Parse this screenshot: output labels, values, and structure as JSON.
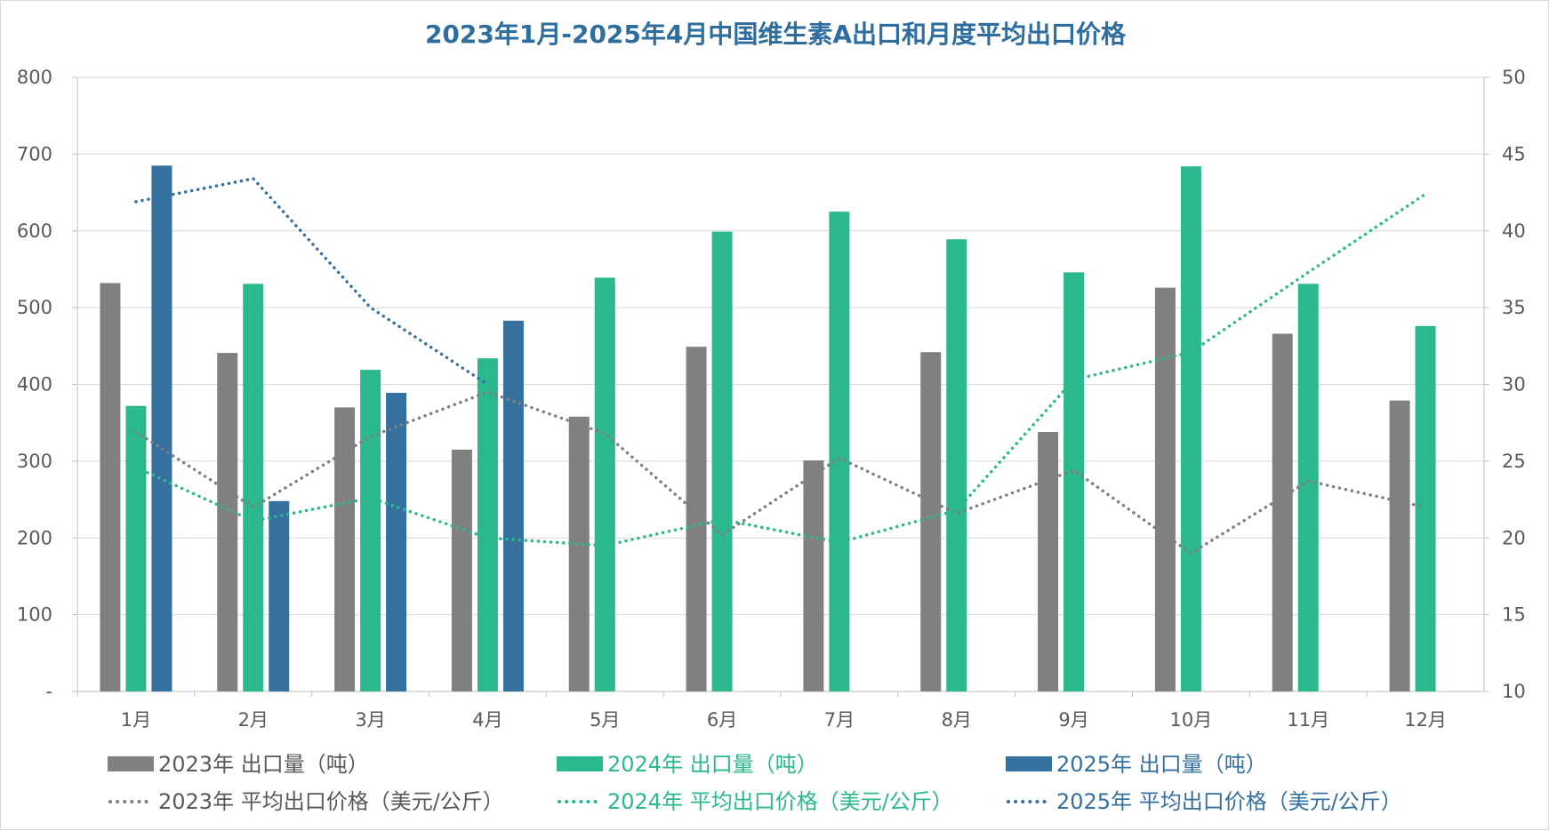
{
  "chart_data": {
    "type": "bar",
    "title": "2023年1月-2025年4月中国维生素A出口和月度平均出口价格",
    "categories": [
      "1月",
      "2月",
      "3月",
      "4月",
      "5月",
      "6月",
      "7月",
      "8月",
      "9月",
      "10月",
      "11月",
      "12月"
    ],
    "y_left": {
      "ylim": [
        0,
        800
      ],
      "ticks": [
        "-",
        "100",
        "200",
        "300",
        "400",
        "500",
        "600",
        "700",
        "800"
      ]
    },
    "y_right": {
      "ylim": [
        10,
        50
      ],
      "ticks": [
        "10",
        "15",
        "20",
        "25",
        "30",
        "35",
        "40",
        "45",
        "50"
      ]
    },
    "grid": true,
    "legend_position": "bottom",
    "bar_series": [
      {
        "name": "2023年 出口量（吨）",
        "color": "#808080",
        "values": [
          532,
          441,
          370,
          315,
          358,
          449,
          301,
          442,
          338,
          526,
          466,
          379
        ]
      },
      {
        "name": "2024年 出口量（吨）",
        "color": "#2BB88F",
        "values": [
          372,
          531,
          419,
          434,
          539,
          599,
          625,
          589,
          546,
          684,
          531,
          476
        ]
      },
      {
        "name": "2025年 出口量（吨）",
        "color": "#35709E",
        "values": [
          685,
          248,
          389,
          483,
          null,
          null,
          null,
          null,
          null,
          null,
          null,
          null
        ]
      }
    ],
    "line_series": [
      {
        "name": "2023年 平均出口价格（美元/公斤）",
        "color": "#7F7F7F",
        "values": [
          26.9,
          22.0,
          26.6,
          29.5,
          26.8,
          20.2,
          25.2,
          21.6,
          24.4,
          19.0,
          23.7,
          22.0
        ]
      },
      {
        "name": "2024年 平均出口价格（美元/公斤）",
        "color": "#2BB88F",
        "values": [
          24.6,
          21.1,
          22.6,
          20.0,
          19.5,
          21.2,
          19.7,
          21.8,
          30.3,
          32.1,
          37.3,
          42.4
        ]
      },
      {
        "name": "2025年 平均出口价格（美元/公斤）",
        "color": "#35709E",
        "values": [
          41.9,
          43.4,
          35.0,
          30.0,
          null,
          null,
          null,
          null,
          null,
          null,
          null,
          null
        ]
      }
    ]
  }
}
